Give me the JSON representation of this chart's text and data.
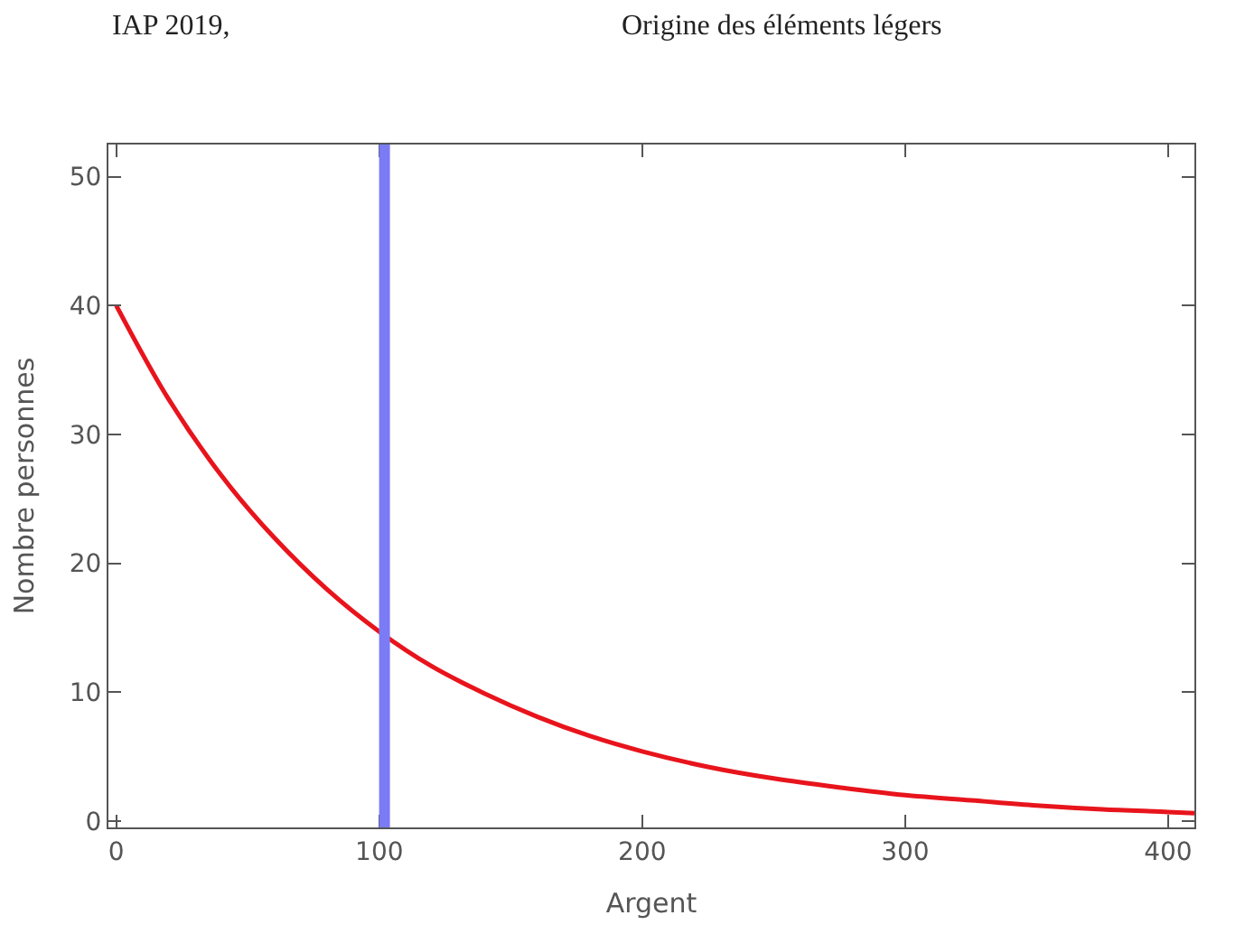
{
  "chart_data": {
    "type": "line",
    "xlabel": "Argent",
    "ylabel": "Nombre personnes",
    "annotations": [
      "IAP 2019,",
      "Origine des éléments légers"
    ],
    "x": [
      0,
      20,
      40,
      60,
      80,
      100,
      120,
      140,
      160,
      180,
      200,
      225,
      250,
      275,
      300,
      325,
      350,
      375,
      400,
      410
    ],
    "series": [
      {
        "color": "#e8141c",
        "values": [
          40,
          32.7,
          26.8,
          22,
          18,
          14.7,
          12,
          9.9,
          8.1,
          6.6,
          5.4,
          4.2,
          3.3,
          2.6,
          2,
          1.6,
          1.2,
          0.9,
          0.7,
          0.6
        ]
      }
    ],
    "xlim": [
      -3,
      410
    ],
    "xticks": [
      0,
      100,
      200,
      300,
      400
    ],
    "ylim": [
      -0.5,
      52.5
    ],
    "yticks": [
      0,
      10,
      20,
      30,
      40,
      50
    ],
    "ref_lines": [
      {
        "axis": "x",
        "value": 102,
        "color": "#7b7bf5"
      }
    ],
    "marker": "none",
    "line_style": "solid"
  }
}
